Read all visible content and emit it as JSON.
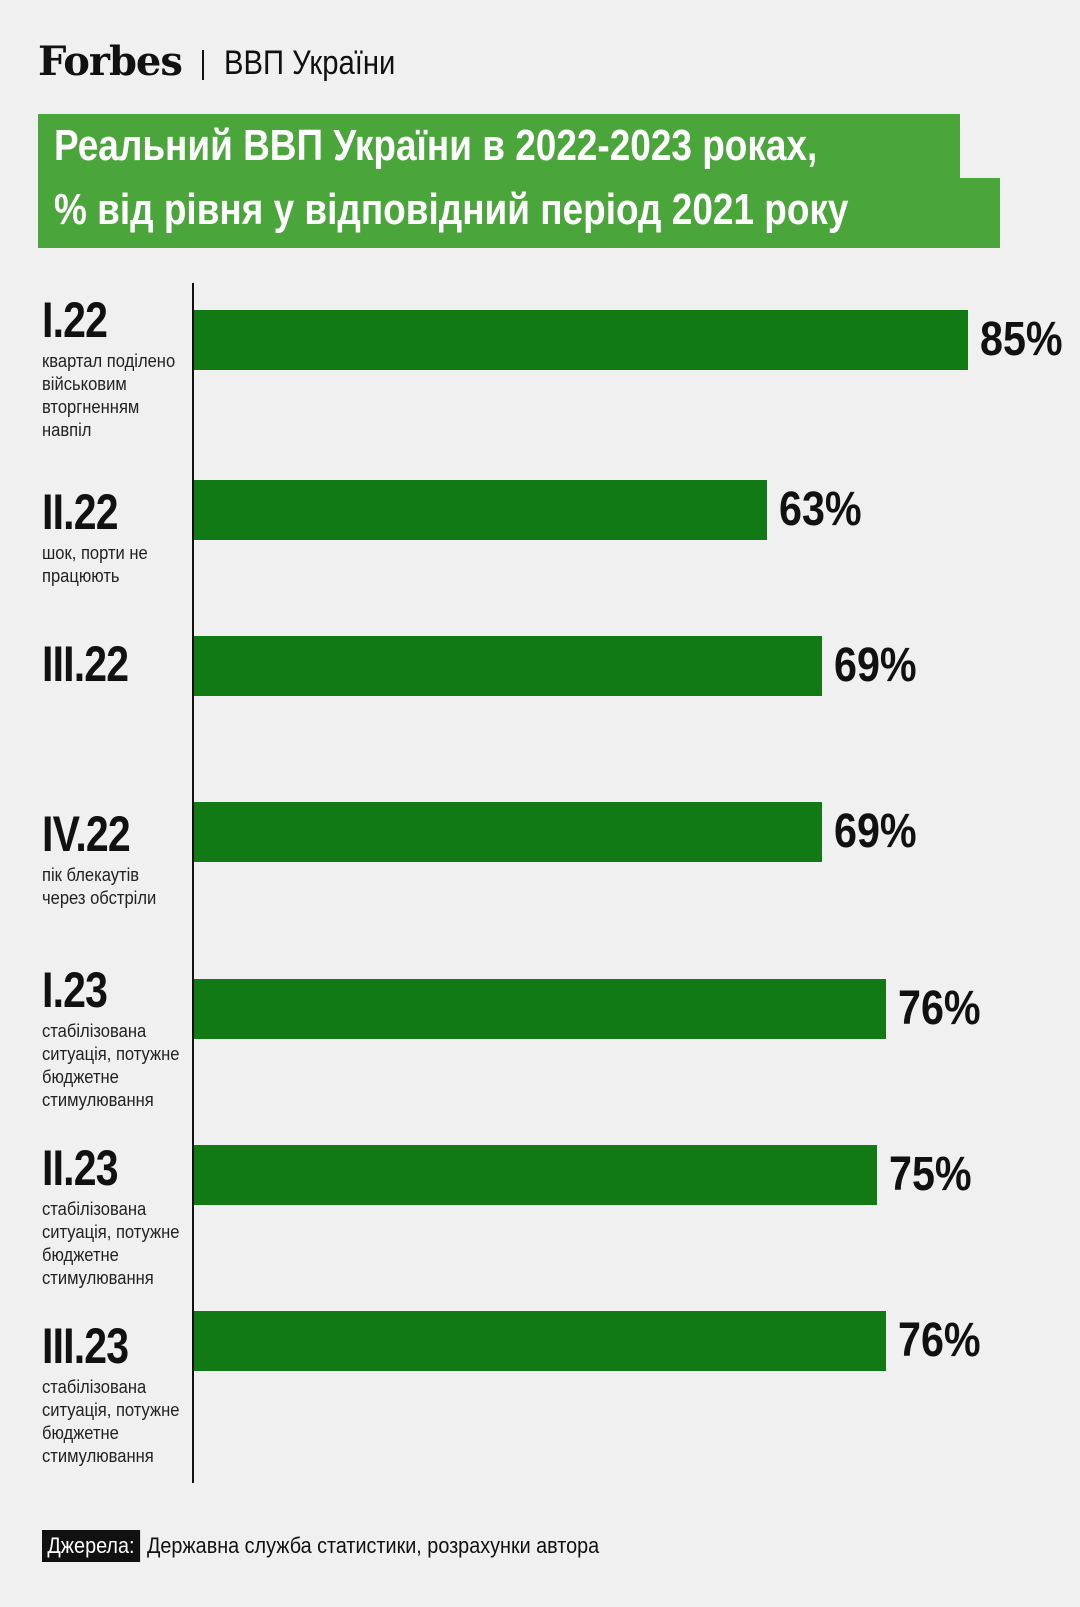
{
  "header": {
    "brand": "Forbes",
    "section": "ВВП України"
  },
  "title": {
    "line1": "Реальний ВВП України в 2022-2023 роках,",
    "line2": "% від рівня у відповідний період 2021 року"
  },
  "chart_data": {
    "type": "bar",
    "orientation": "horizontal",
    "categories": [
      "I.22",
      "II.22",
      "III.22",
      "IV.22",
      "I.23",
      "II.23",
      "III.23"
    ],
    "values": [
      85,
      63,
      69,
      69,
      76,
      75,
      76
    ],
    "value_labels": [
      "85%",
      "63%",
      "69%",
      "69%",
      "76%",
      "75%",
      "76%"
    ],
    "notes": [
      "квартал поділено військовим вторгненням навпіл",
      "шок, порти не працюють",
      "",
      "пік блекаутів через обстріли",
      "стабілізована ситуація, потужне бюджетне стимулювання",
      "стабілізована ситуація, потужне бюджетне стимулювання",
      "стабілізована ситуація, потужне бюджетне стимулювання"
    ],
    "bar_color": "#127a14"
  },
  "source": {
    "label": "Джерела:",
    "text": "Державна служба статистики, розрахунки автора"
  },
  "colors": {
    "title_bg": "#4aa53a",
    "background": "#f0f0f0"
  }
}
